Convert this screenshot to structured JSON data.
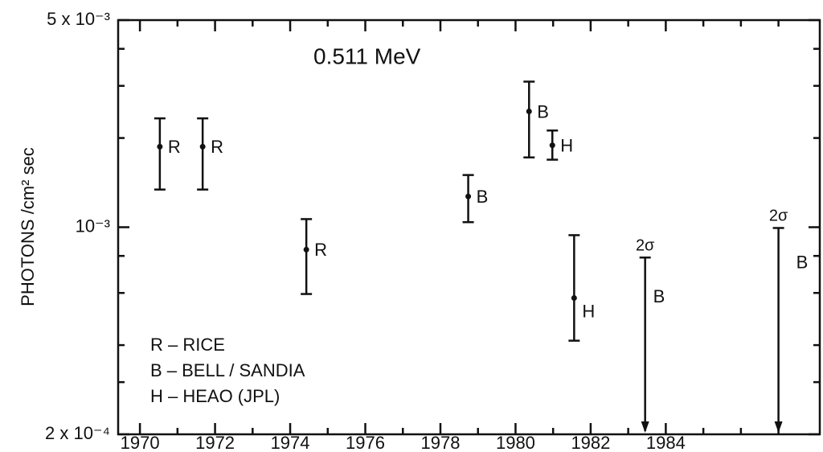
{
  "chart_data": {
    "type": "errorbar",
    "annotation": "0.511 MeV",
    "ylabel": "PHOTONS /cm² sec",
    "log_y": true,
    "xlim": [
      1969.42,
      1988.1
    ],
    "xticks": [
      1970,
      1972,
      1974,
      1976,
      1978,
      1980,
      1982,
      1984
    ],
    "minor_xticks": [
      1971,
      1973,
      1975,
      1977,
      1979,
      1981,
      1983,
      1985,
      1986,
      1987
    ],
    "ylim": [
      0.0002,
      0.005
    ],
    "yticks": [
      {
        "value": 0.0002,
        "label": "2 x 10⁻⁴"
      },
      {
        "value": 0.001,
        "label": "10⁻³"
      },
      {
        "value": 0.005,
        "label": "5 x 10⁻³"
      }
    ],
    "minor_yticks": [
      0.0003,
      0.0004,
      0.0006,
      0.0008,
      0.002,
      0.003,
      0.004
    ],
    "color": "#111111",
    "points": {
      "x": [
        1970.53,
        1971.67,
        1974.43,
        1978.74,
        1980.36,
        1980.98,
        1981.56
      ],
      "values": [
        0.00187,
        0.00187,
        0.00084,
        0.00127,
        0.00246,
        0.00189,
        0.000577
      ],
      "lower": [
        0.00134,
        0.00134,
        0.000595,
        0.00104,
        0.00172,
        0.00169,
        0.000414
      ],
      "upper": [
        0.00233,
        0.00233,
        0.001065,
        0.0015,
        0.0031,
        0.00212,
        0.00094
      ],
      "labels": [
        "R",
        "R",
        "R",
        "B",
        "B",
        "H",
        "H"
      ]
    },
    "upper_limits": {
      "x": [
        1983.45,
        1987.0
      ],
      "values": [
        0.00079,
        0.000994
      ],
      "labels": [
        "B",
        "B"
      ],
      "sigma_labels": [
        "2σ",
        "2σ"
      ]
    },
    "legend": [
      "R – RICE",
      "B – BELL / SANDIA",
      "H – HEAO (JPL)"
    ]
  }
}
